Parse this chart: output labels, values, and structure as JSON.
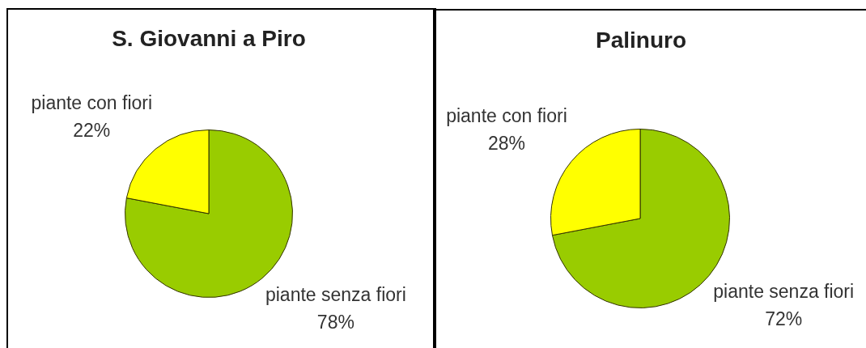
{
  "chart_data": [
    {
      "type": "pie",
      "title": "S. Giovanni a Piro",
      "categories": [
        "piante senza fiori",
        "piante con fiori"
      ],
      "values": [
        78,
        22
      ],
      "colors": [
        "#99cc00",
        "#ffff00"
      ],
      "value_labels": [
        "78%",
        "22%"
      ]
    },
    {
      "type": "pie",
      "title": "Palinuro",
      "categories": [
        "piante senza fiori",
        "piante con fiori"
      ],
      "values": [
        72,
        28
      ],
      "colors": [
        "#99cc00",
        "#ffff00"
      ],
      "value_labels": [
        "72%",
        "28%"
      ]
    }
  ]
}
